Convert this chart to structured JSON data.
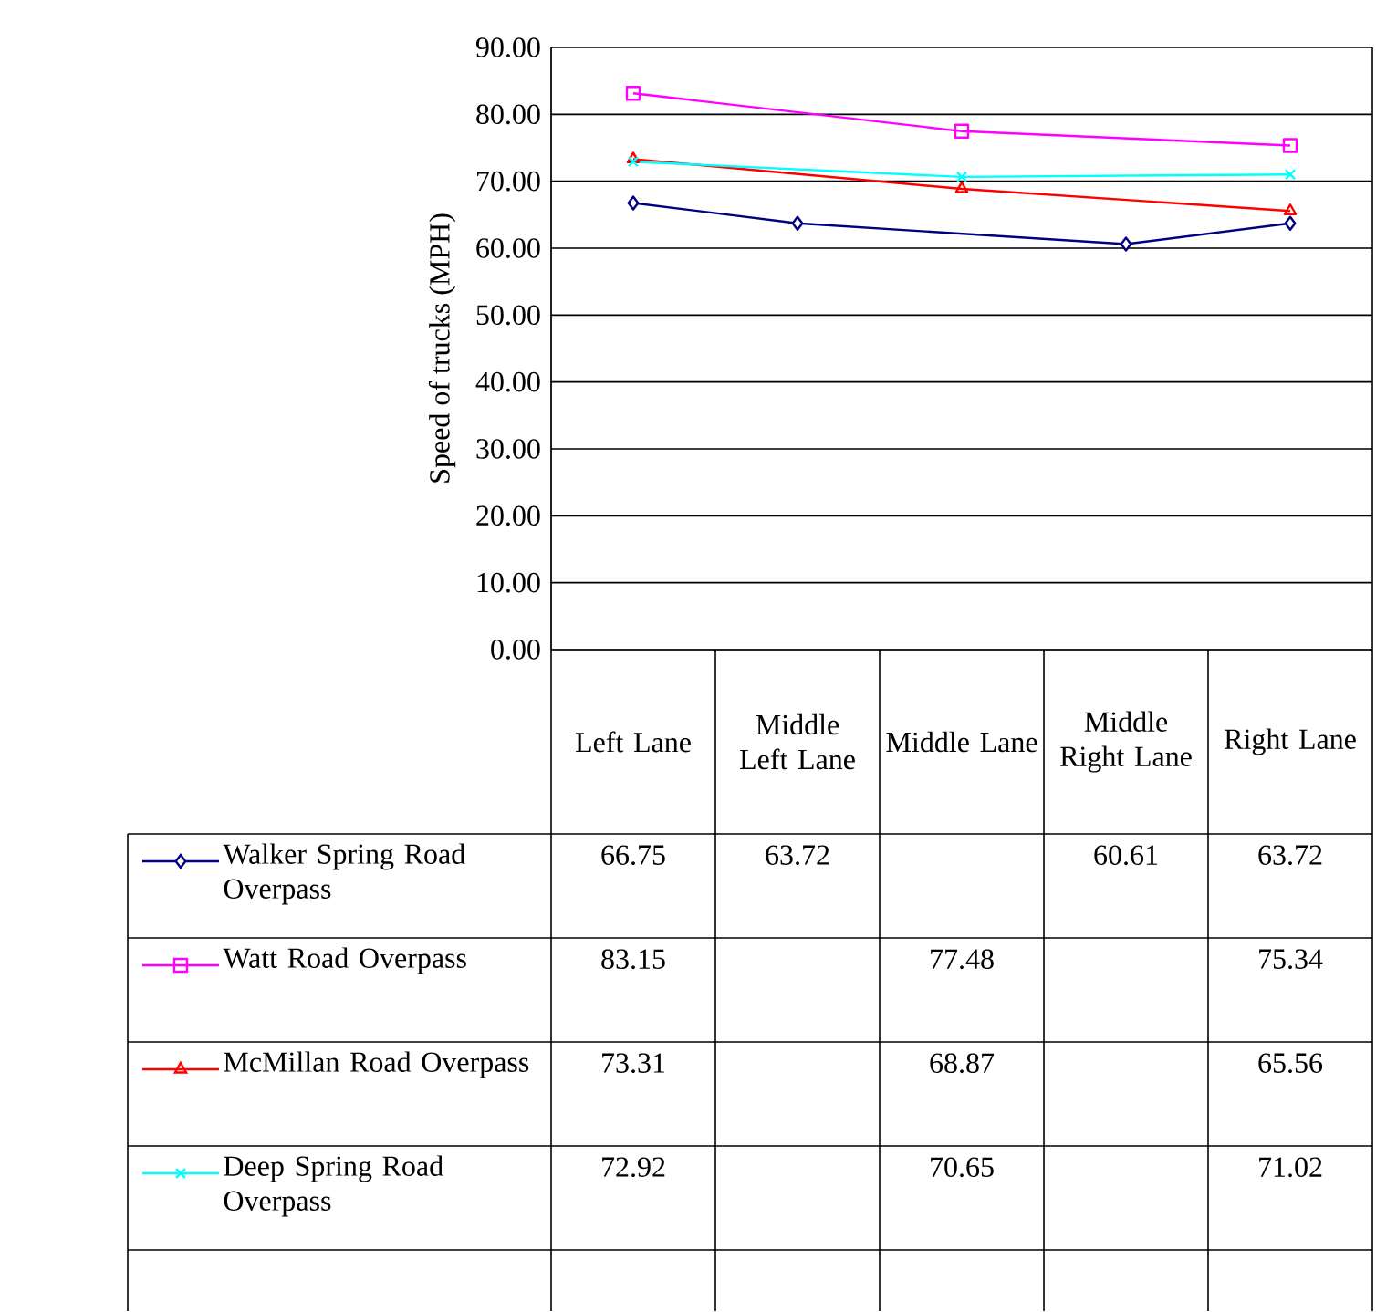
{
  "chart_data": {
    "type": "line",
    "ylabel": "Speed of trucks (MPH)",
    "categories": [
      "Left Lane",
      "Middle Left Lane",
      "Middle Lane",
      "Middle Right Lane",
      "Right Lane"
    ],
    "series": [
      {
        "name": "Walker Spring Road Overpass",
        "color": "#000080",
        "marker": "diamond",
        "values": [
          66.75,
          63.72,
          null,
          60.61,
          63.72
        ]
      },
      {
        "name": "Watt Road Overpass",
        "color": "#ff00ff",
        "marker": "square",
        "values": [
          83.15,
          null,
          77.48,
          null,
          75.34
        ]
      },
      {
        "name": "McMillan Road Overpass",
        "color": "#ff0000",
        "marker": "triangle",
        "values": [
          73.31,
          null,
          68.87,
          null,
          65.56
        ]
      },
      {
        "name": "Deep Spring Road Overpass",
        "color": "#00ffff",
        "marker": "cross",
        "values": [
          72.92,
          null,
          70.65,
          null,
          71.02
        ]
      }
    ],
    "ylim": [
      0,
      90
    ],
    "yticks": [
      {
        "value": 0,
        "label": "0.00"
      },
      {
        "value": 10,
        "label": "10.00"
      },
      {
        "value": 20,
        "label": "20.00"
      },
      {
        "value": 30,
        "label": "30.00"
      },
      {
        "value": 40,
        "label": "40.00"
      },
      {
        "value": 50,
        "label": "50.00"
      },
      {
        "value": 60,
        "label": "60.00"
      },
      {
        "value": 70,
        "label": "70.00"
      },
      {
        "value": 80,
        "label": "80.00"
      },
      {
        "value": 90,
        "label": "90.00"
      }
    ],
    "grid": "y",
    "legend": "bottom",
    "data_labels": true,
    "line_style": "solid"
  }
}
